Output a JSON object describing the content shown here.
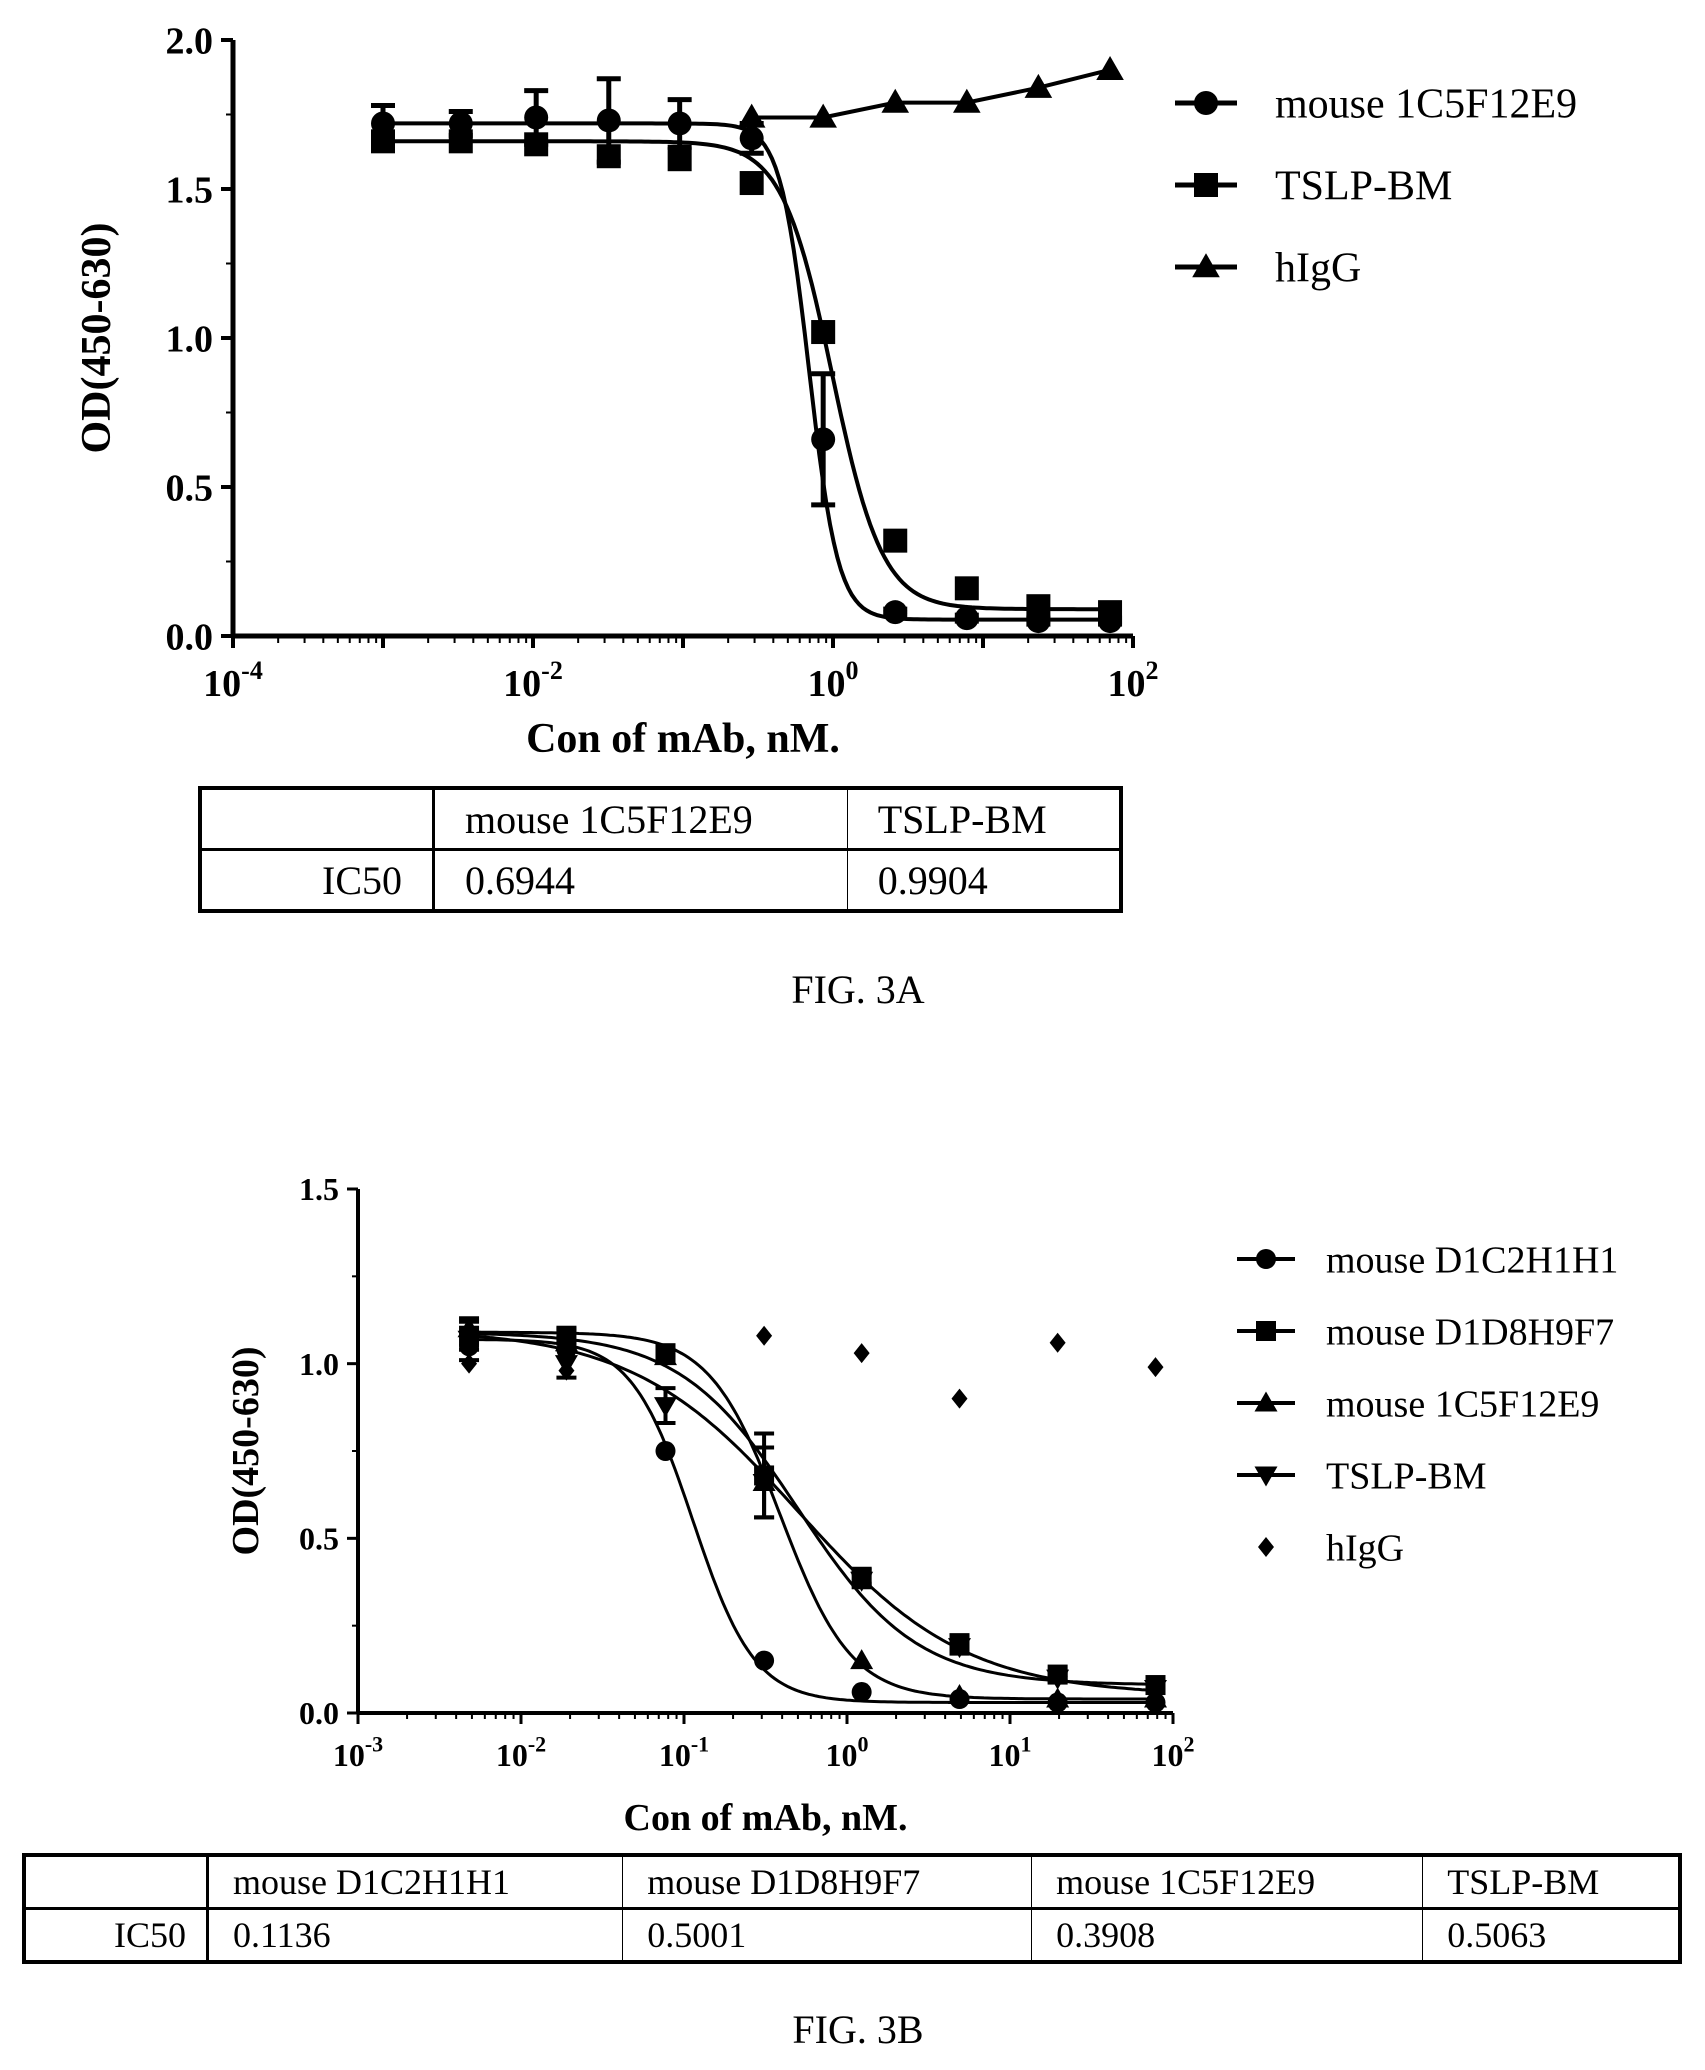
{
  "chart_data": [
    {
      "type": "line",
      "xlabel": "Con of mAb, nM.",
      "ylabel": "OD(450-630)",
      "x_scale": "log",
      "xlim": [
        0.0001,
        100
      ],
      "ylim": [
        0,
        2.0
      ],
      "x_ticks": [
        "10-4",
        "10-2",
        "100",
        "102"
      ],
      "y_ticks": [
        "0.0",
        "0.5",
        "1.0",
        "1.5",
        "2.0"
      ],
      "legend_position": "top-right",
      "series": [
        {
          "name": "mouse 1C5F12E9",
          "marker": "circle",
          "x": [
            0.001,
            0.0033,
            0.0105,
            0.032,
            0.095,
            0.287,
            0.86,
            2.6,
            7.8,
            23.4,
            70.3
          ],
          "y": [
            1.72,
            1.72,
            1.74,
            1.73,
            1.72,
            1.67,
            0.66,
            0.08,
            0.06,
            0.05,
            0.05
          ],
          "error": [
            0.06,
            0.04,
            0.09,
            0.14,
            0.08,
            0.05,
            0.22,
            0.01,
            0.01,
            0.01,
            0.01
          ],
          "curve": {
            "top": 1.72,
            "bottom": 0.055,
            "ic50": 0.6944,
            "hill": 4.5
          }
        },
        {
          "name": "TSLP-BM",
          "marker": "square",
          "x": [
            0.001,
            0.0033,
            0.0105,
            0.032,
            0.095,
            0.287,
            0.86,
            2.6,
            7.8,
            23.4,
            70.3
          ],
          "y": [
            1.66,
            1.66,
            1.65,
            1.61,
            1.6,
            1.52,
            1.02,
            0.32,
            0.16,
            0.1,
            0.08
          ],
          "curve": {
            "top": 1.66,
            "bottom": 0.09,
            "ic50": 0.9904,
            "hill": 2.6
          }
        },
        {
          "name": "hIgG",
          "marker": "triangle",
          "x": [
            0.287,
            0.86,
            2.6,
            7.8,
            23.4,
            70.3
          ],
          "y": [
            1.74,
            1.74,
            1.79,
            1.79,
            1.84,
            1.9
          ]
        }
      ],
      "table": {
        "header": [
          "",
          "mouse 1C5F12E9",
          "TSLP-BM"
        ],
        "rows": [
          [
            "IC50",
            "0.6944",
            "0.9904"
          ]
        ]
      },
      "caption": "FIG. 3A"
    },
    {
      "type": "line",
      "xlabel": "Con of mAb, nM.",
      "ylabel": "OD(450-630)",
      "x_scale": "log",
      "xlim": [
        0.001,
        100
      ],
      "ylim": [
        0,
        1.5
      ],
      "x_ticks": [
        "10-3",
        "10-2",
        "10-1",
        "100",
        "101",
        "102"
      ],
      "y_ticks": [
        "0.0",
        "0.5",
        "1.0",
        "1.5"
      ],
      "legend_position": "top-right",
      "series": [
        {
          "name": "mouse D1C2H1H1",
          "marker": "circle",
          "x": [
            0.0048,
            0.019,
            0.077,
            0.31,
            1.23,
            4.9,
            19.6,
            78.1
          ],
          "y": [
            1.05,
            1.04,
            0.75,
            0.15,
            0.06,
            0.04,
            0.03,
            0.03
          ],
          "curve": {
            "top": 1.07,
            "bottom": 0.03,
            "ic50": 0.1136,
            "hill": 2.3
          }
        },
        {
          "name": "mouse D1D8H9F7",
          "marker": "square",
          "x": [
            0.0048,
            0.019,
            0.077,
            0.31,
            1.23,
            4.9,
            19.6,
            78.1
          ],
          "y": [
            1.08,
            1.08,
            1.03,
            0.68,
            0.39,
            0.2,
            0.11,
            0.08
          ],
          "error": [
            0.04,
            0.02,
            0.02,
            0.12,
            0.02,
            0.02,
            0.01,
            0.01
          ],
          "curve": {
            "top": 1.09,
            "bottom": 0.08,
            "ic50": 0.5001,
            "hill": 1.2
          }
        },
        {
          "name": "mouse 1C5F12E9",
          "marker": "triangle",
          "x": [
            0.0048,
            0.019,
            0.077,
            0.31,
            1.23,
            4.9,
            19.6,
            78.1
          ],
          "y": [
            1.1,
            1.06,
            1.02,
            0.66,
            0.15,
            0.05,
            0.04,
            0.04
          ],
          "curve": {
            "top": 1.09,
            "bottom": 0.04,
            "ic50": 0.3908,
            "hill": 2.0
          }
        },
        {
          "name": "TSLP-BM",
          "marker": "triangle-down",
          "x": [
            0.0048,
            0.019,
            0.077,
            0.31,
            1.23,
            4.9,
            19.6,
            78.1
          ],
          "y": [
            1.07,
            1.0,
            0.88,
            0.66,
            0.38,
            0.19,
            0.1,
            0.07
          ],
          "error": [
            0.06,
            0.04,
            0.05,
            0.1,
            0.02,
            0.02,
            0.01,
            0.01
          ],
          "curve": {
            "top": 1.1,
            "bottom": 0.05,
            "ic50": 0.5063,
            "hill": 0.85
          }
        },
        {
          "name": "hIgG",
          "marker": "diamond",
          "x": [
            0.0048,
            0.019,
            0.31,
            1.23,
            4.9,
            19.6,
            78.1
          ],
          "y": [
            1.0,
            0.98,
            1.08,
            1.03,
            0.9,
            1.06,
            0.99
          ]
        }
      ],
      "table": {
        "header": [
          "",
          "mouse D1C2H1H1",
          "mouse D1D8H9F7",
          "mouse 1C5F12E9",
          "TSLP-BM"
        ],
        "rows": [
          [
            "IC50",
            "0.1136",
            "0.5001",
            "0.3908",
            "0.5063"
          ]
        ]
      },
      "caption": "FIG. 3B"
    }
  ]
}
